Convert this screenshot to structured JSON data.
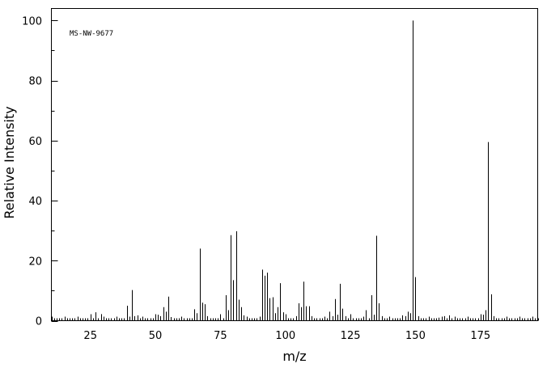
{
  "chart_data": {
    "type": "bar",
    "subtype": "mass-spectrum-stick",
    "title": "",
    "annotation": "MS-NW-9677",
    "xlabel": "m/z",
    "ylabel": "Relative Intensity",
    "xlim": [
      10,
      197
    ],
    "ylim": [
      0,
      104
    ],
    "x_ticks": [
      25,
      50,
      75,
      100,
      125,
      150,
      175
    ],
    "y_ticks": [
      0,
      20,
      40,
      60,
      80,
      100
    ],
    "grid": false,
    "legend": "none",
    "peaks": [
      [
        27,
        2.8
      ],
      [
        29,
        2.2
      ],
      [
        39,
        5.0
      ],
      [
        40,
        1.2
      ],
      [
        41,
        10.2
      ],
      [
        42,
        1.5
      ],
      [
        43,
        1.8
      ],
      [
        51,
        2.0
      ],
      [
        52,
        1.5
      ],
      [
        53,
        4.5
      ],
      [
        54,
        3.0
      ],
      [
        55,
        8.0
      ],
      [
        56,
        1.2
      ],
      [
        65,
        3.8
      ],
      [
        66,
        2.5
      ],
      [
        67,
        24.0
      ],
      [
        68,
        6.0
      ],
      [
        69,
        5.5
      ],
      [
        70,
        1.5
      ],
      [
        77,
        8.5
      ],
      [
        78,
        3.5
      ],
      [
        79,
        28.5
      ],
      [
        80,
        13.5
      ],
      [
        81,
        29.8
      ],
      [
        82,
        7.0
      ],
      [
        83,
        4.5
      ],
      [
        84,
        1.8
      ],
      [
        91,
        17.0
      ],
      [
        92,
        15.0
      ],
      [
        93,
        16.0
      ],
      [
        94,
        7.5
      ],
      [
        95,
        7.8
      ],
      [
        96,
        2.5
      ],
      [
        97,
        4.5
      ],
      [
        98,
        12.5
      ],
      [
        99,
        2.8
      ],
      [
        104,
        1.5
      ],
      [
        105,
        5.8
      ],
      [
        106,
        4.5
      ],
      [
        107,
        13.0
      ],
      [
        108,
        4.8
      ],
      [
        109,
        4.8
      ],
      [
        110,
        1.5
      ],
      [
        117,
        3.0
      ],
      [
        118,
        1.5
      ],
      [
        119,
        7.2
      ],
      [
        120,
        2.0
      ],
      [
        121,
        12.3
      ],
      [
        122,
        4.0
      ],
      [
        123,
        1.5
      ],
      [
        131,
        3.5
      ],
      [
        133,
        8.5
      ],
      [
        134,
        2.0
      ],
      [
        135,
        28.3
      ],
      [
        136,
        5.8
      ],
      [
        137,
        1.5
      ],
      [
        145,
        1.8
      ],
      [
        146,
        1.5
      ],
      [
        147,
        3.0
      ],
      [
        148,
        2.5
      ],
      [
        149,
        100.0
      ],
      [
        150,
        14.5
      ],
      [
        151,
        1.5
      ],
      [
        159,
        1.0
      ],
      [
        161,
        1.5
      ],
      [
        163,
        1.8
      ],
      [
        165,
        1.0
      ],
      [
        175,
        1.2
      ],
      [
        176,
        2.0
      ],
      [
        177,
        3.5
      ],
      [
        178,
        59.5
      ],
      [
        179,
        8.8
      ],
      [
        180,
        1.5
      ]
    ]
  }
}
